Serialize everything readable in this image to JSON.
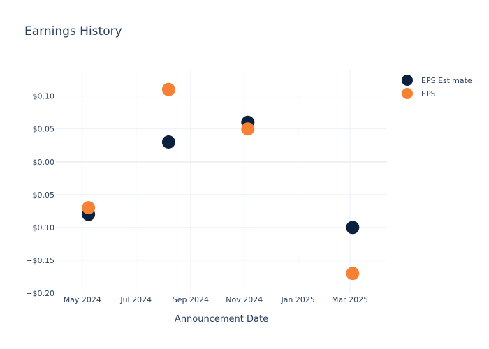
{
  "chart_data": {
    "type": "scatter",
    "title": "Earnings History",
    "xlabel": "Announcement Date",
    "ylabel": "",
    "x_axis_type": "date",
    "xlim": [
      "2024-04-01",
      "2025-04-12"
    ],
    "ylim": [
      -0.2,
      0.14
    ],
    "x_ticks": [
      {
        "date": "2024-05-01",
        "label": "May 2024"
      },
      {
        "date": "2024-07-01",
        "label": "Jul 2024"
      },
      {
        "date": "2024-09-01",
        "label": "Sep 2024"
      },
      {
        "date": "2024-11-01",
        "label": "Nov 2024"
      },
      {
        "date": "2025-01-01",
        "label": "Jan 2025"
      },
      {
        "date": "2025-03-01",
        "label": "Mar 2025"
      }
    ],
    "y_ticks": [
      {
        "value": 0.1,
        "label": "$0.10"
      },
      {
        "value": 0.05,
        "label": "$0.05"
      },
      {
        "value": 0.0,
        "label": "$0.00"
      },
      {
        "value": -0.05,
        "label": "−$0.05"
      },
      {
        "value": -0.1,
        "label": "−$0.10"
      },
      {
        "value": -0.15,
        "label": "−$0.15"
      },
      {
        "value": -0.2,
        "label": "−$0.20"
      }
    ],
    "grid": true,
    "legend_position": "top-right",
    "series": [
      {
        "name": "EPS Estimate",
        "color": "#0b1f3f",
        "points": [
          {
            "x": "2024-05-08",
            "y": -0.08
          },
          {
            "x": "2024-08-07",
            "y": 0.03
          },
          {
            "x": "2024-11-05",
            "y": 0.06
          },
          {
            "x": "2025-03-04",
            "y": -0.1
          }
        ]
      },
      {
        "name": "EPS",
        "color": "#f58134",
        "points": [
          {
            "x": "2024-05-08",
            "y": -0.07
          },
          {
            "x": "2024-08-07",
            "y": 0.11
          },
          {
            "x": "2024-11-05",
            "y": 0.05
          },
          {
            "x": "2025-03-04",
            "y": -0.17
          }
        ]
      }
    ]
  }
}
